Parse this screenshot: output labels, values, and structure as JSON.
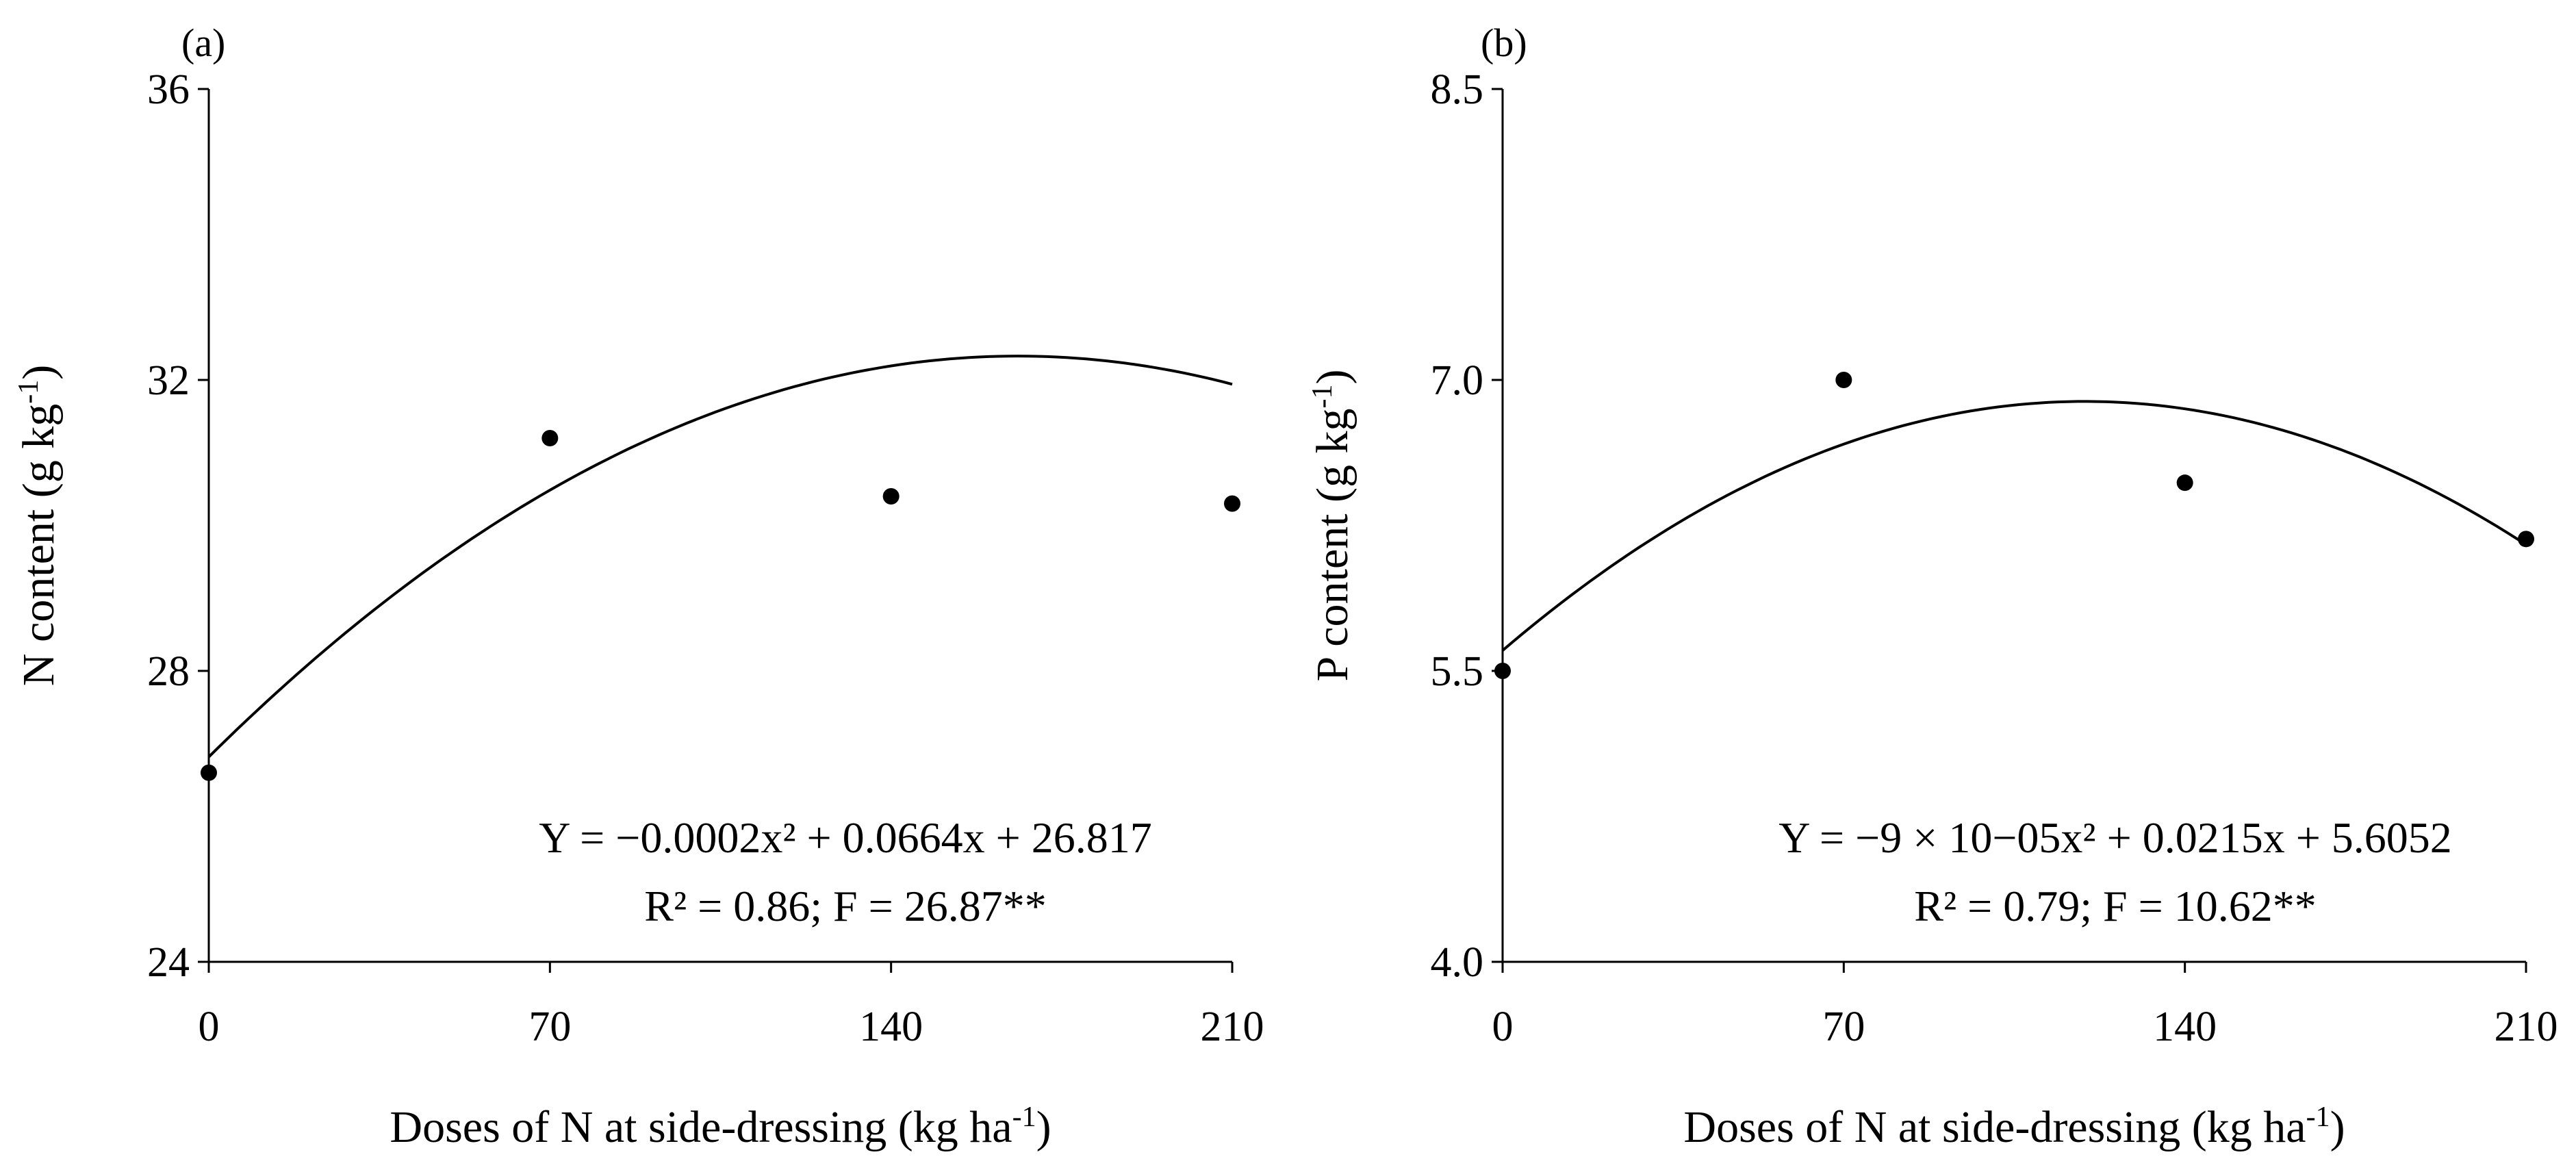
{
  "chart_data": [
    {
      "type": "scatter",
      "panel_label": "(a)",
      "title": "",
      "xlabel": "Doses of N at side-dressing (kg ha",
      "xlabel_unit_sup": "-1",
      "xlabel_close": ")",
      "ylabel": "N content (g kg",
      "ylabel_unit_sup": "-1",
      "ylabel_close": ")",
      "x_ticks": [
        0,
        70,
        140,
        210
      ],
      "x_tick_labels": [
        "0",
        "70",
        "140",
        "210"
      ],
      "y_ticks": [
        24,
        28,
        32,
        36
      ],
      "y_tick_labels": [
        "24",
        "28",
        "32",
        "36"
      ],
      "xlim": [
        0,
        210
      ],
      "ylim": [
        24,
        36
      ],
      "points": {
        "x": [
          0,
          70,
          140,
          210
        ],
        "y": [
          26.6,
          31.2,
          30.4,
          30.3
        ]
      },
      "fit": {
        "a": -0.0002,
        "b": 0.0664,
        "c": 26.817
      },
      "equation_text": "Y = −0.0002x² + 0.0664x + 26.817",
      "stats_text": "R² = 0.86; F = 26.87**",
      "grid": false,
      "legend": "none"
    },
    {
      "type": "scatter",
      "panel_label": "(b)",
      "title": "",
      "xlabel": "Doses of N at side-dressing (kg ha",
      "xlabel_unit_sup": "-1",
      "xlabel_close": ")",
      "ylabel": "P content (g kg",
      "ylabel_unit_sup": "-1",
      "ylabel_close": ")",
      "x_ticks": [
        0,
        70,
        140,
        210
      ],
      "x_tick_labels": [
        "0",
        "70",
        "140",
        "210"
      ],
      "y_ticks": [
        4.0,
        5.5,
        7.0,
        8.5
      ],
      "y_tick_labels": [
        "4.0",
        "5.5",
        "7.0",
        "8.5"
      ],
      "xlim": [
        0,
        210
      ],
      "ylim": [
        4.0,
        8.5
      ],
      "points": {
        "x": [
          0,
          70,
          140,
          210
        ],
        "y": [
          5.5,
          7.0,
          6.47,
          6.18
        ]
      },
      "fit": {
        "a": -9e-05,
        "b": 0.0215,
        "c": 5.6052
      },
      "equation_text": "Y = −9 × 10−05x² + 0.0215x + 5.6052",
      "stats_text": "R² = 0.79; F = 10.62**",
      "grid": false,
      "legend": "none"
    }
  ]
}
